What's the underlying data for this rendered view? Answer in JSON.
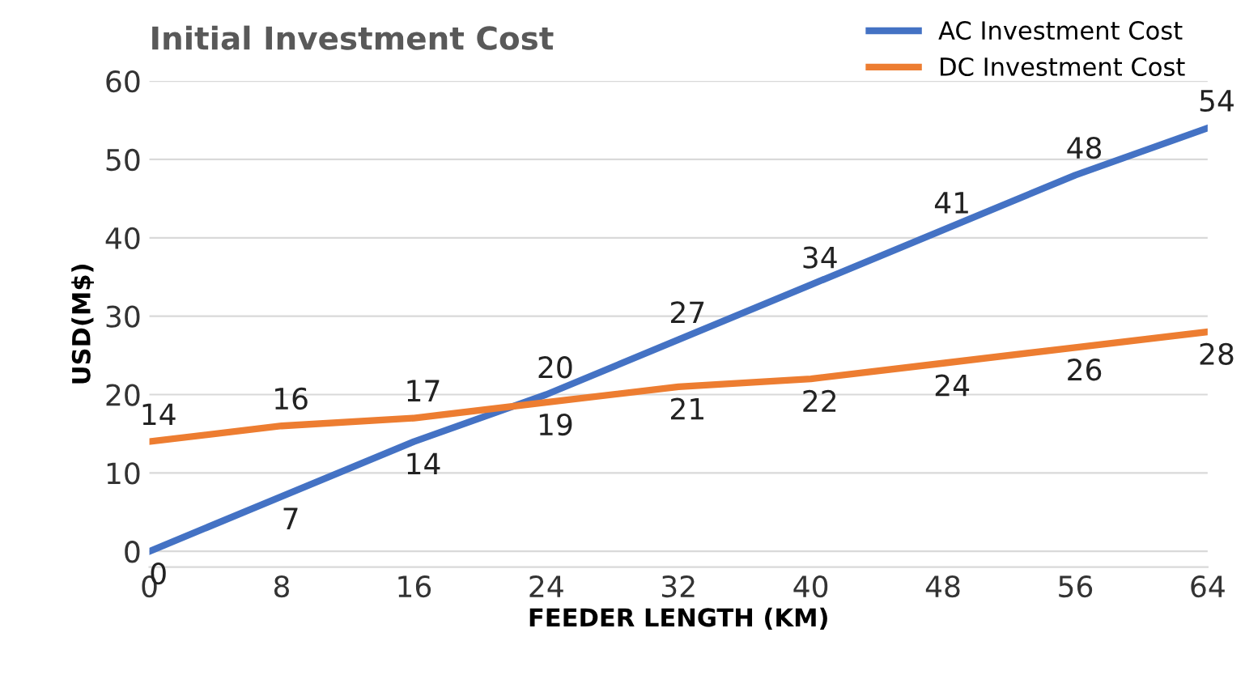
{
  "chart_data": {
    "type": "line",
    "title": "Initial Investment Cost",
    "xlabel": "FEEDER LENGTH (KM)",
    "ylabel": "USD(M$)",
    "x": [
      0,
      8,
      16,
      24,
      32,
      40,
      48,
      56,
      64
    ],
    "series": [
      {
        "name": "AC Investment Cost",
        "color": "#4472c4",
        "values": [
          0,
          7,
          14,
          20,
          27,
          34,
          41,
          48,
          54
        ]
      },
      {
        "name": "DC Investment Cost",
        "color": "#ed7d31",
        "values": [
          14,
          16,
          17,
          19,
          21,
          22,
          24,
          26,
          28
        ]
      }
    ],
    "xlim": [
      0,
      64
    ],
    "xticks": [
      0,
      8,
      16,
      24,
      32,
      40,
      48,
      56,
      64
    ],
    "ylim": [
      -2,
      60
    ],
    "yticks": [
      0,
      10,
      20,
      30,
      40,
      50,
      60
    ],
    "grid": "y",
    "legend": "top right",
    "data_labels": true,
    "marker": "none",
    "line_style": "solid"
  }
}
